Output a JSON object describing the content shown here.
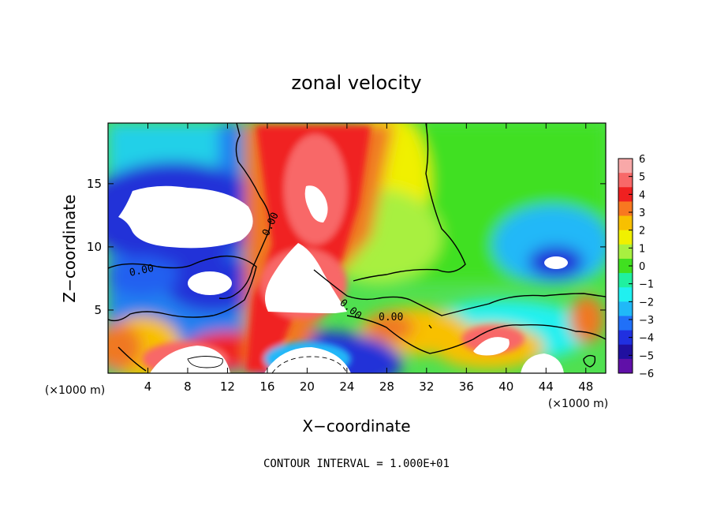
{
  "chart_data": {
    "type": "heatmap",
    "title": "zonal velocity",
    "xlabel": "X−coordinate",
    "ylabel": "Z−coordinate",
    "x_units": "(×1000 m)",
    "z_units": "(×1000 m)",
    "xlim": [
      0,
      50
    ],
    "ylim": [
      0,
      19.8
    ],
    "x_ticks": [
      4,
      8,
      12,
      16,
      20,
      24,
      28,
      32,
      36,
      40,
      44,
      48
    ],
    "y_ticks": [
      5,
      10,
      15
    ],
    "colorbar": {
      "min": -6,
      "max": 6,
      "labels": [
        "6",
        "5",
        "4",
        "3",
        "2",
        "1",
        "0",
        "−1",
        "−2",
        "−3",
        "−4",
        "−5",
        "−6"
      ],
      "colors": [
        "#f8a8a8",
        "#f86868",
        "#f02020",
        "#f87820",
        "#f8c000",
        "#f0f000",
        "#a8f040",
        "#40e020",
        "#20f0a0",
        "#20f0f0",
        "#20b8f8",
        "#2070f8",
        "#2030e0",
        "#2010a0",
        "#6010a8"
      ]
    },
    "contour_labels": [
      "0.00",
      "0.00",
      "0.00",
      "0.00"
    ],
    "footnote": "CONTOUR INTERVAL = 1.000E+01",
    "grid": false,
    "legend": "right"
  }
}
